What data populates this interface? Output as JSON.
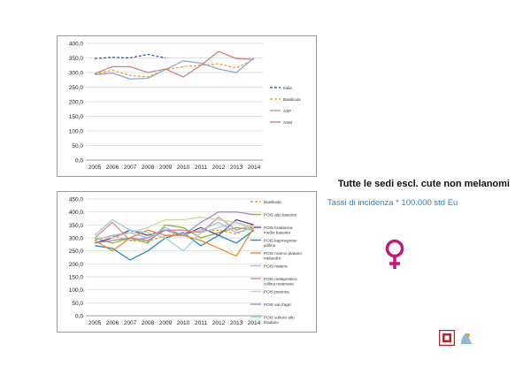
{
  "slide": {
    "title": "Tutte le sedi escl. cute non melanomi",
    "subtitle": "Tassi di incidenza * 100.000 std Eu"
  },
  "icons": {
    "female_symbol_color": "#c2187a",
    "logo_left": "institution-logo-icon",
    "logo_right": "registry-logo-icon"
  },
  "chart_data": [
    {
      "type": "line",
      "x": [
        "2005",
        "2006",
        "2007",
        "2008",
        "2009",
        "2010",
        "2011",
        "2012",
        "2013",
        "2014"
      ],
      "ylim": [
        0,
        400
      ],
      "yticks": [
        "0,0",
        "50,0",
        "100,0",
        "150,0",
        "200,0",
        "250,0",
        "300,0",
        "350,0",
        "400,0"
      ],
      "grid": true,
      "legend_position": "right",
      "series": [
        {
          "name": "Italia",
          "color": "#2e5d9e",
          "dash": true,
          "values": [
            348,
            352,
            350,
            362,
            350,
            null,
            null,
            null,
            null,
            null
          ]
        },
        {
          "name": "Basilicata",
          "color": "#f0a02c",
          "dash": true,
          "values": [
            295,
            308,
            290,
            285,
            310,
            320,
            325,
            330,
            315,
            345
          ]
        },
        {
          "name": "ASP",
          "color": "#8ea9d6",
          "dash": false,
          "values": [
            293,
            298,
            278,
            280,
            310,
            340,
            332,
            312,
            300,
            350
          ]
        },
        {
          "name": "ASM",
          "color": "#c98285",
          "dash": false,
          "values": [
            296,
            320,
            320,
            300,
            312,
            285,
            325,
            372,
            348,
            345
          ]
        }
      ]
    },
    {
      "type": "line",
      "x": [
        "2005",
        "2006",
        "2007",
        "2008",
        "2009",
        "2010",
        "2011",
        "2012",
        "2013",
        "2014"
      ],
      "ylim": [
        0,
        450
      ],
      "yticks": [
        "0,0",
        "50,0",
        "100,0",
        "150,0",
        "200,0",
        "250,0",
        "300,0",
        "350,0",
        "400,0",
        "450,0"
      ],
      "grid": true,
      "legend_position": "right",
      "series": [
        {
          "name": "Basilicata",
          "color": "#f0a02c",
          "dash": true,
          "values": [
            295,
            308,
            290,
            285,
            310,
            320,
            325,
            330,
            315,
            345
          ]
        },
        {
          "name": "POIS alto basento",
          "color": "#8bb840",
          "dash": false,
          "values": [
            300,
            280,
            300,
            280,
            350,
            340,
            300,
            320,
            340,
            330
          ]
        },
        {
          "name": "POIS bradanica medio basento",
          "color": "#6b3d92",
          "dash": false,
          "values": [
            280,
            300,
            330,
            310,
            330,
            310,
            340,
            310,
            370,
            350
          ]
        },
        {
          "name": "POIS lagonegrese pollino",
          "color": "#1f8fb3",
          "dash": false,
          "values": [
            270,
            260,
            215,
            250,
            300,
            320,
            270,
            310,
            280,
            330
          ]
        },
        {
          "name": "POIS marmo platano melandro",
          "color": "#f08a24",
          "dash": false,
          "values": [
            290,
            250,
            300,
            330,
            310,
            310,
            290,
            260,
            230,
            340
          ]
        },
        {
          "name": "POIS matera",
          "color": "#a7bad8",
          "dash": false,
          "values": [
            290,
            310,
            320,
            300,
            340,
            310,
            330,
            360,
            320,
            340
          ]
        },
        {
          "name": "POIS metapontino collina materana",
          "color": "#d18f95",
          "dash": false,
          "values": [
            300,
            360,
            290,
            300,
            330,
            330,
            320,
            380,
            330,
            350
          ]
        },
        {
          "name": "POIS potenza",
          "color": "#c8d89a",
          "dash": false,
          "values": [
            300,
            300,
            320,
            340,
            370,
            370,
            380,
            370,
            360,
            340
          ]
        },
        {
          "name": "POIS val d'agri",
          "color": "#a48bc4",
          "dash": false,
          "values": [
            280,
            290,
            300,
            290,
            330,
            310,
            360,
            400,
            400,
            390
          ]
        },
        {
          "name": "POIS vulture alto bradano",
          "color": "#9ed0e0",
          "dash": false,
          "values": [
            310,
            370,
            330,
            320,
            300,
            250,
            320,
            340,
            360,
            330
          ]
        }
      ]
    }
  ]
}
